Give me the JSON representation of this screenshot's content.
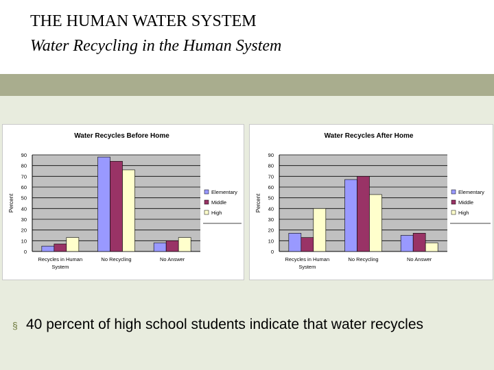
{
  "slide": {
    "title": "THE HUMAN WATER SYSTEM",
    "subtitle": "Water Recycling in the Human System",
    "bullet_marker": "§",
    "bullet": "40 percent of high school students indicate that water recycles",
    "colors": {
      "elementary": "#9999ff",
      "middle": "#993366",
      "high": "#ffffcc",
      "plot_bg": "#c0c0c0",
      "band": "#a9ad8e",
      "background": "#e8ecde"
    }
  },
  "chart_data": [
    {
      "type": "bar",
      "title": "Water Recycles Before Home",
      "ylabel": "Percent",
      "xlabel": "",
      "ylim": [
        0,
        90
      ],
      "yticks": [
        0,
        10,
        20,
        30,
        40,
        50,
        60,
        70,
        80,
        90
      ],
      "grid": true,
      "legend": "right",
      "categories": [
        [
          "Recycles in Human",
          "System"
        ],
        [
          "No Recycling"
        ],
        [
          "No Answer"
        ]
      ],
      "series": [
        {
          "name": "Elementary",
          "values": [
            5,
            88,
            8
          ]
        },
        {
          "name": "Middle",
          "values": [
            7,
            84,
            10
          ]
        },
        {
          "name": "High",
          "values": [
            13,
            76,
            13
          ]
        }
      ]
    },
    {
      "type": "bar",
      "title": "Water Recycles After Home",
      "ylabel": "Percent",
      "xlabel": "",
      "ylim": [
        0,
        90
      ],
      "yticks": [
        0,
        10,
        20,
        30,
        40,
        50,
        60,
        70,
        80,
        90
      ],
      "grid": true,
      "legend": "right",
      "categories": [
        [
          "Recycles in Human",
          "System"
        ],
        [
          "No Recycling"
        ],
        [
          "No Answer"
        ]
      ],
      "series": [
        {
          "name": "Elementary",
          "values": [
            17,
            67,
            15
          ]
        },
        {
          "name": "Middle",
          "values": [
            13,
            70,
            17
          ]
        },
        {
          "name": "High",
          "values": [
            40,
            53,
            8
          ]
        }
      ]
    }
  ]
}
